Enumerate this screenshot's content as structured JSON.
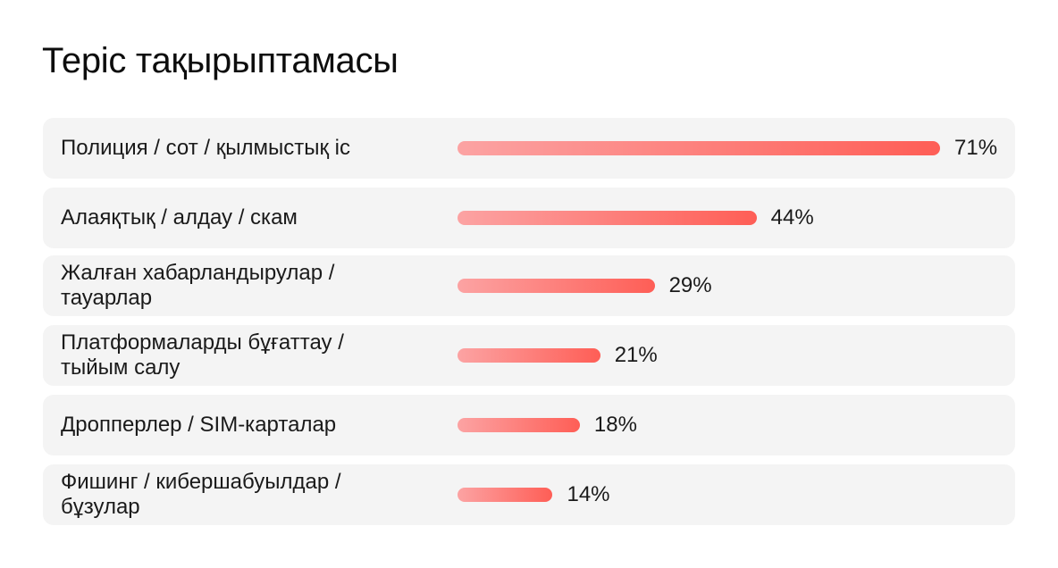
{
  "title": "Теріс тақырыптамасы",
  "colors": {
    "row_background": "#f4f4f4",
    "bar_start": "#fca3a3",
    "bar_end": "#fe5e56"
  },
  "chart_data": {
    "type": "bar",
    "orientation": "horizontal",
    "title": "Теріс тақырыптамасы",
    "xlabel": "",
    "ylabel": "",
    "unit": "%",
    "xlim": [
      0,
      71
    ],
    "grid": false,
    "legend": "none",
    "categories": [
      "Полиция / сот / қылмыстық іс",
      "Алаяқтық / алдау / скам",
      "Жалған хабарландырулар /\nтауарлар",
      "Платформаларды бұғаттау /\nтыйым салу",
      "Дропперлер / SIM-карталар",
      "Фишинг / кибершабуылдар /\nбұзулар"
    ],
    "values": [
      71,
      44,
      29,
      21,
      18,
      14
    ],
    "value_labels": [
      "71%",
      "44%",
      "29%",
      "21%",
      "18%",
      "14%"
    ]
  }
}
